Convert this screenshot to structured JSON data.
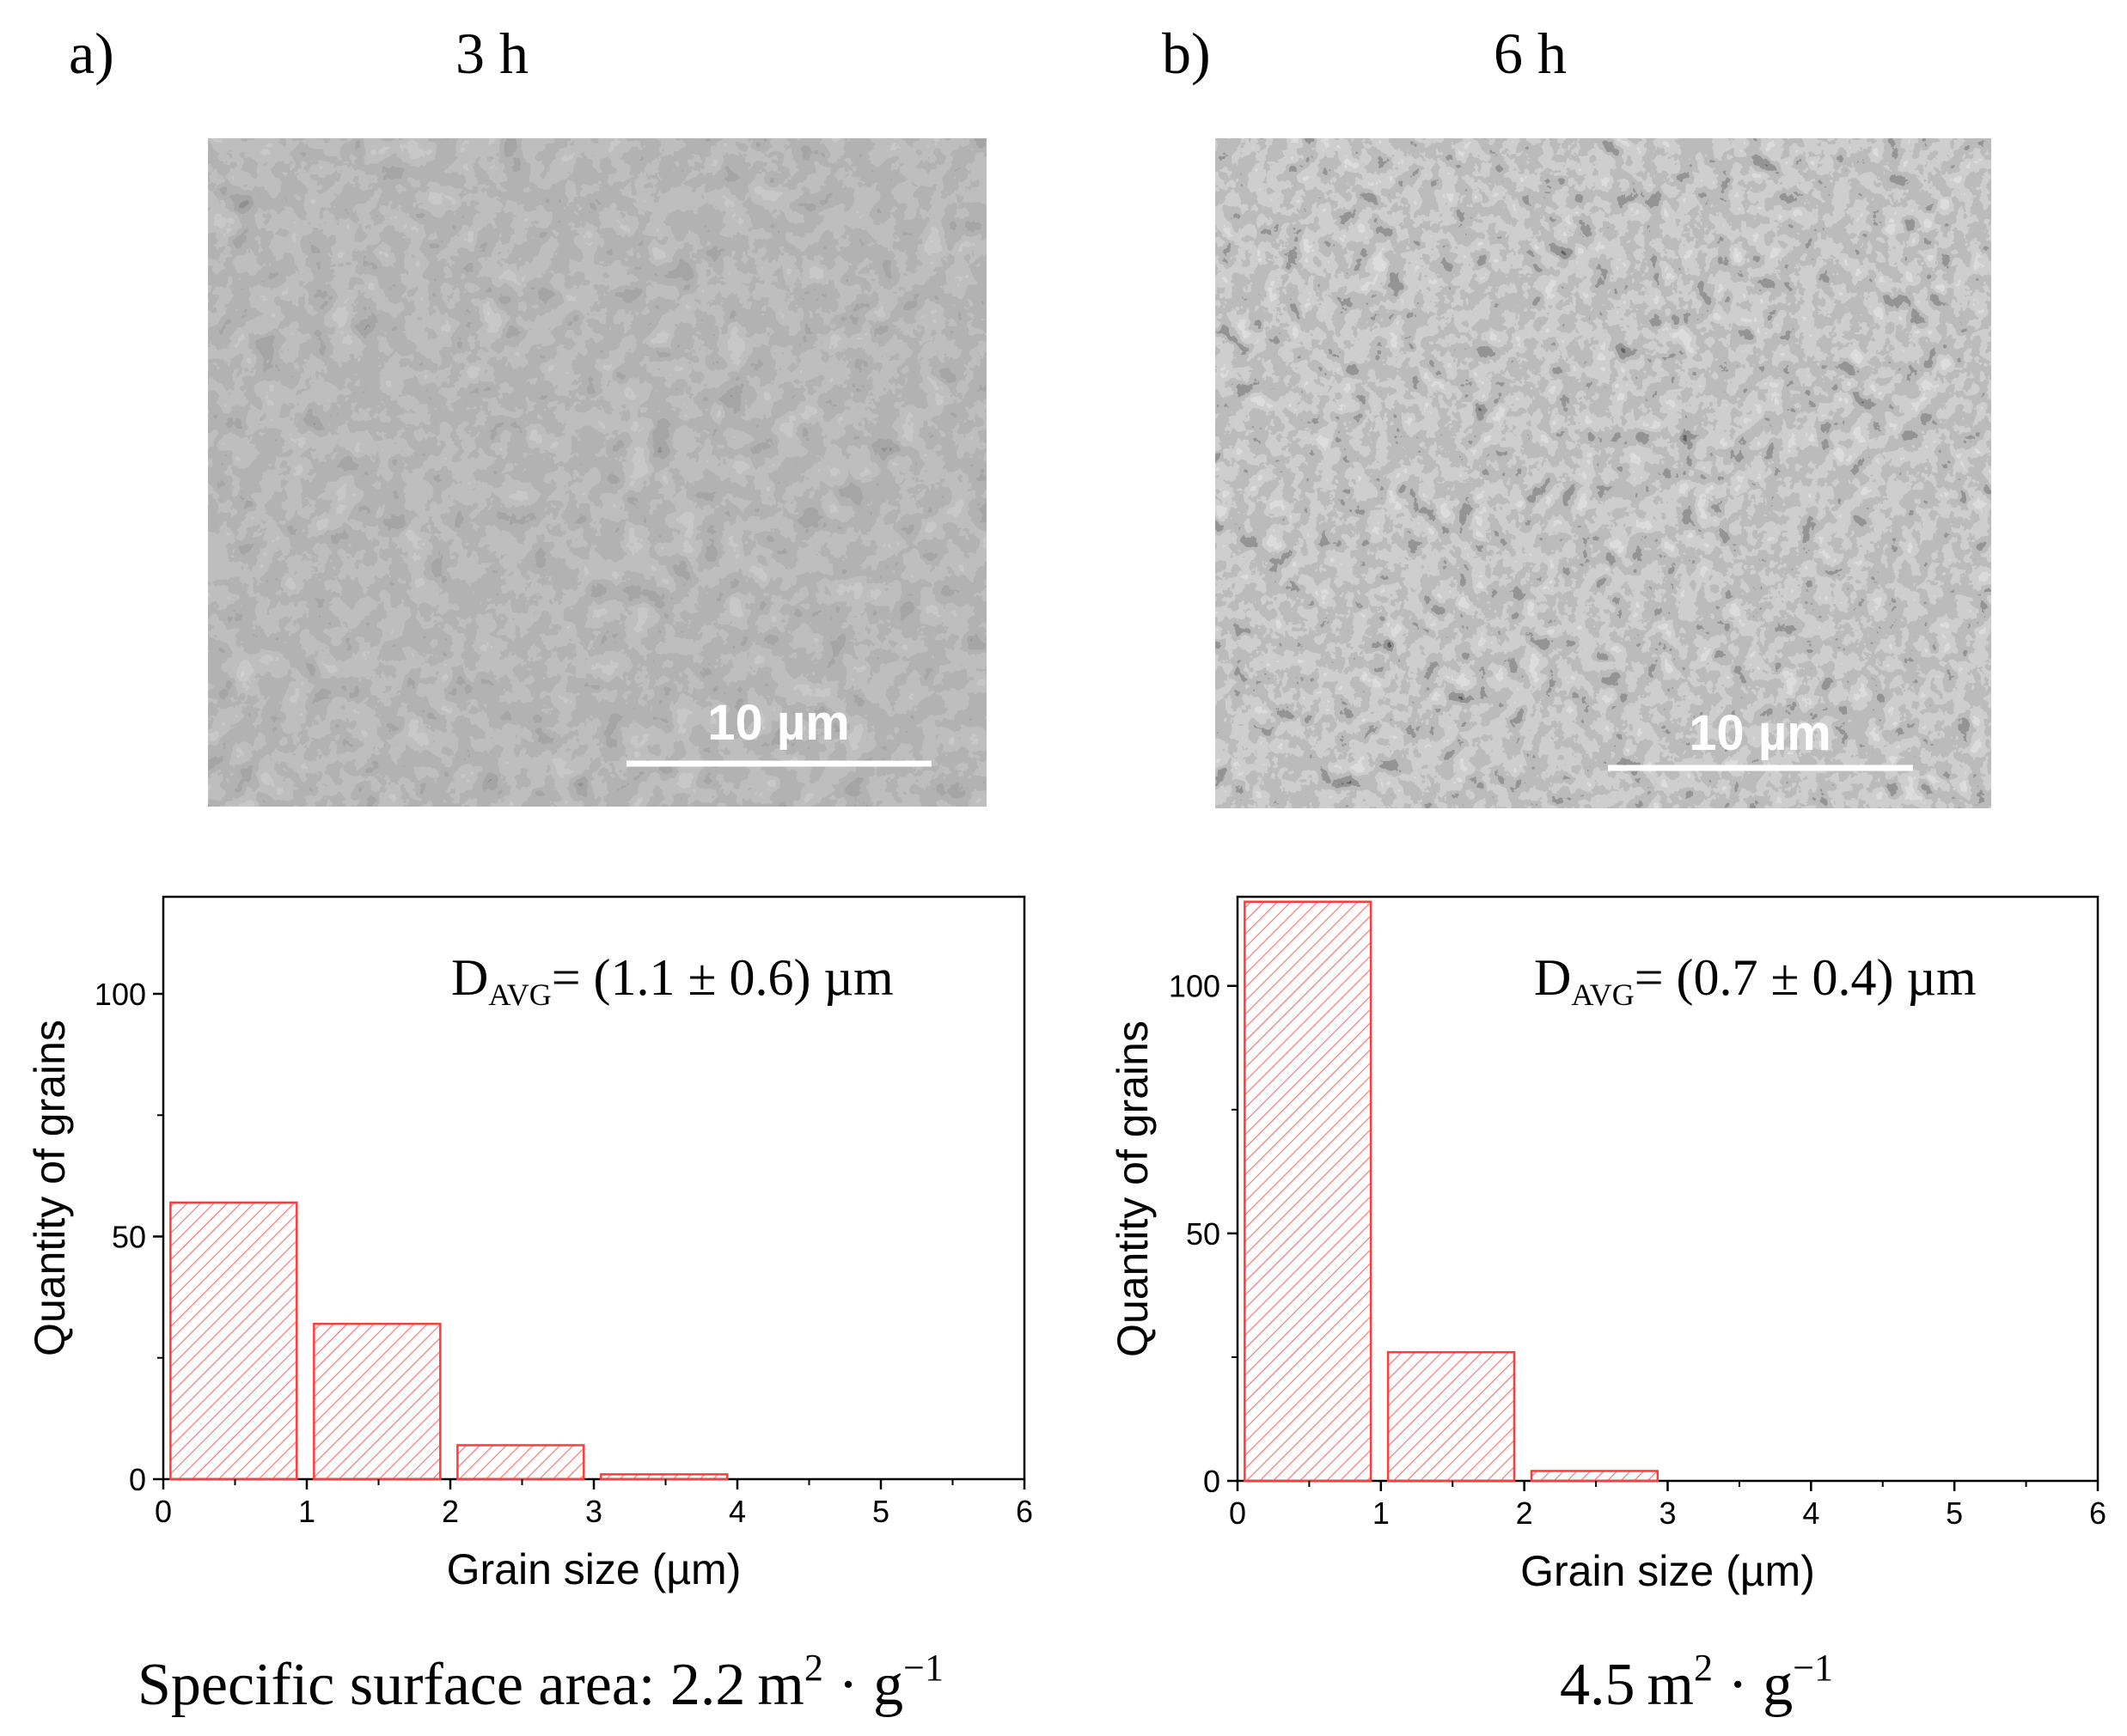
{
  "panels": [
    {
      "letter": "a)",
      "time": "3 h",
      "scale_bar": "10 µm",
      "surface_area": {
        "prefix": "Specific surface area: ",
        "value": "2.2",
        "unit": "m",
        "unit_exp": "2",
        "dot": " · g",
        "g_exp": "−1"
      }
    },
    {
      "letter": "b)",
      "time": "6 h",
      "scale_bar": "10 µm",
      "surface_area": {
        "prefix": "",
        "value": "4.5",
        "unit": "m",
        "unit_exp": "2",
        "dot": " · g",
        "g_exp": "−1"
      }
    }
  ],
  "colors": {
    "bar_stroke": "#ff3b3b",
    "bar_hatch": "#ff6b6b",
    "sem_bright_3h": "#8a8a8a",
    "sem_bright_6h": "#b0b0b0"
  },
  "chart_data": [
    {
      "type": "bar",
      "xlabel": "Grain size (µm)",
      "ylabel": "Quantity of grains",
      "annotation": {
        "main": "D",
        "sub": "AVG",
        "rest": "= (1.1 ± 0.6) µm"
      },
      "xlim": [
        0,
        6
      ],
      "ylim": [
        0,
        120
      ],
      "xticks": [
        "0",
        "1",
        "2",
        "3",
        "4",
        "5",
        "6"
      ],
      "yticks": [
        "0",
        "50",
        "100"
      ],
      "bins": [
        {
          "x0": 0.05,
          "x1": 0.93,
          "value": 57
        },
        {
          "x0": 1.05,
          "x1": 1.93,
          "value": 32
        },
        {
          "x0": 2.05,
          "x1": 2.93,
          "value": 7
        },
        {
          "x0": 3.05,
          "x1": 3.93,
          "value": 1
        }
      ]
    },
    {
      "type": "bar",
      "xlabel": "Grain size (µm)",
      "ylabel": "Quantity of grains",
      "annotation": {
        "main": "D",
        "sub": "AVG",
        "rest": "= (0.7 ± 0.4) µm"
      },
      "xlim": [
        0,
        6
      ],
      "ylim": [
        0,
        118
      ],
      "xticks": [
        "0",
        "1",
        "2",
        "3",
        "4",
        "5",
        "6"
      ],
      "yticks": [
        "0",
        "50",
        "100"
      ],
      "bins": [
        {
          "x0": 0.05,
          "x1": 0.93,
          "value": 117
        },
        {
          "x0": 1.05,
          "x1": 1.93,
          "value": 26
        },
        {
          "x0": 2.05,
          "x1": 2.93,
          "value": 2
        }
      ]
    }
  ]
}
